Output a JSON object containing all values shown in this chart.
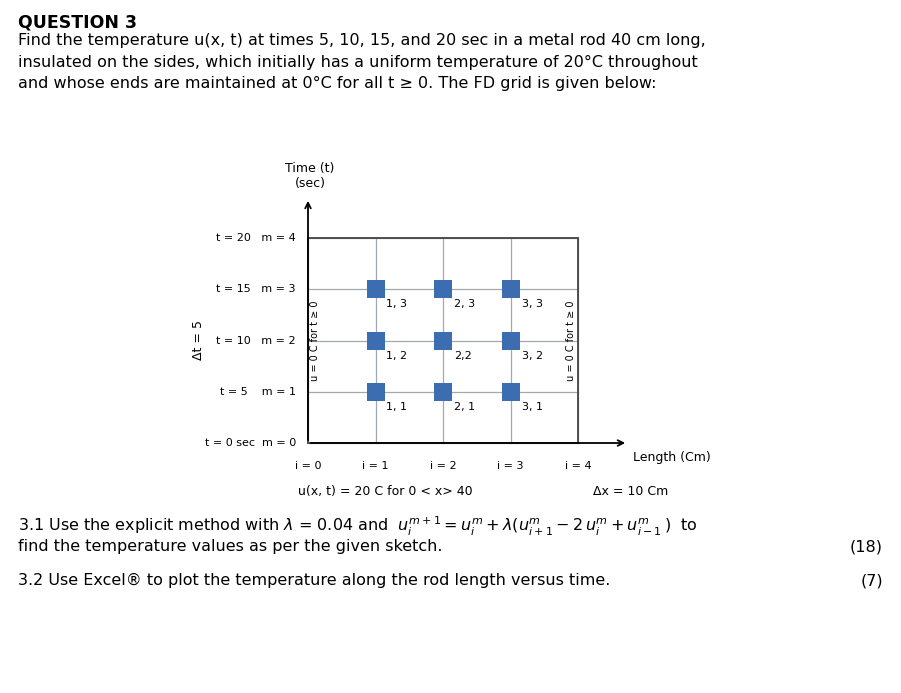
{
  "title": "QUESTION 3",
  "question_text": "Find the temperature u(x, t) at times 5, 10, 15, and 20 sec in a metal rod 40 cm long,\ninsulated on the sides, which initially has a uniform temperature of 20°C throughout\nand whose ends are maintained at 0°C for all t ≥ 0. The FD grid is given below:",
  "grid_xlabel": "Length (Cm)",
  "left_bc_label": "u = 0 C for t ≥ 0",
  "right_bc_label": "u = 0 C for t ≥ 0",
  "delta_t_label": "Δt = 5",
  "bottom_label": "u(x, t) = 20 C for 0 < x> 40",
  "delta_x_label": "Δx = 10 Cm",
  "node_labels": [
    [
      "1, 1",
      "2, 1",
      "3, 1"
    ],
    [
      "1, 2",
      "2,2",
      "3, 2"
    ],
    [
      "1, 3",
      "2, 3",
      "3, 3"
    ]
  ],
  "node_color": "#3C6DB0",
  "grid_color": "#A0A8B0",
  "section_31_num": "(18)",
  "section_32_num": "(7)",
  "bg_color": "#ffffff",
  "text_color": "#000000",
  "font_size_body": 11.5,
  "font_size_title": 12.5,
  "font_size_small": 9.0,
  "font_size_tiny": 8.0
}
